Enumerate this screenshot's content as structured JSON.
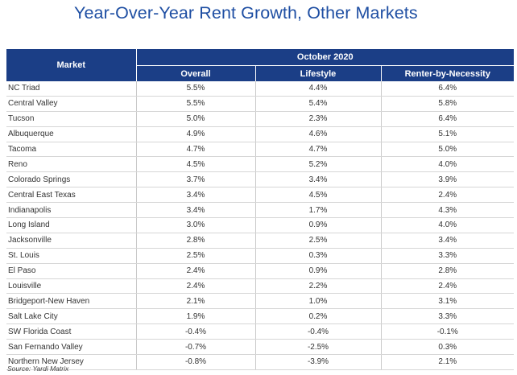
{
  "title": "Year-Over-Year Rent Growth, Other Markets",
  "source": "Source: Yardi Matrix",
  "table": {
    "period": "October 2020",
    "columns": [
      "Market",
      "Overall",
      "Lifestyle",
      "Renter-by-Necessity"
    ],
    "rows": [
      {
        "market": "NC Triad",
        "overall": "5.5%",
        "lifestyle": "4.4%",
        "rbn": "6.4%"
      },
      {
        "market": "Central Valley",
        "overall": "5.5%",
        "lifestyle": "5.4%",
        "rbn": "5.8%"
      },
      {
        "market": "Tucson",
        "overall": "5.0%",
        "lifestyle": "2.3%",
        "rbn": "6.4%"
      },
      {
        "market": "Albuquerque",
        "overall": "4.9%",
        "lifestyle": "4.6%",
        "rbn": "5.1%"
      },
      {
        "market": "Tacoma",
        "overall": "4.7%",
        "lifestyle": "4.7%",
        "rbn": "5.0%"
      },
      {
        "market": "Reno",
        "overall": "4.5%",
        "lifestyle": "5.2%",
        "rbn": "4.0%"
      },
      {
        "market": "Colorado Springs",
        "overall": "3.7%",
        "lifestyle": "3.4%",
        "rbn": "3.9%"
      },
      {
        "market": "Central East Texas",
        "overall": "3.4%",
        "lifestyle": "4.5%",
        "rbn": "2.4%"
      },
      {
        "market": "Indianapolis",
        "overall": "3.4%",
        "lifestyle": "1.7%",
        "rbn": "4.3%"
      },
      {
        "market": "Long Island",
        "overall": "3.0%",
        "lifestyle": "0.9%",
        "rbn": "4.0%"
      },
      {
        "market": "Jacksonville",
        "overall": "2.8%",
        "lifestyle": "2.5%",
        "rbn": "3.4%"
      },
      {
        "market": "St. Louis",
        "overall": "2.5%",
        "lifestyle": "0.3%",
        "rbn": "3.3%"
      },
      {
        "market": "El Paso",
        "overall": "2.4%",
        "lifestyle": "0.9%",
        "rbn": "2.8%"
      },
      {
        "market": "Louisville",
        "overall": "2.4%",
        "lifestyle": "2.2%",
        "rbn": "2.4%"
      },
      {
        "market": "Bridgeport-New Haven",
        "overall": "2.1%",
        "lifestyle": "1.0%",
        "rbn": "3.1%"
      },
      {
        "market": "Salt Lake City",
        "overall": "1.9%",
        "lifestyle": "0.2%",
        "rbn": "3.3%"
      },
      {
        "market": "SW Florida Coast",
        "overall": "-0.4%",
        "lifestyle": "-0.4%",
        "rbn": "-0.1%"
      },
      {
        "market": "San Fernando Valley",
        "overall": "-0.7%",
        "lifestyle": "-2.5%",
        "rbn": "0.3%"
      },
      {
        "market": "Northern New Jersey",
        "overall": "-0.8%",
        "lifestyle": "-3.9%",
        "rbn": "2.1%"
      }
    ]
  },
  "colors": {
    "title": "#1f4fa3",
    "header_bg": "#1b3e86",
    "header_text": "#ffffff"
  }
}
